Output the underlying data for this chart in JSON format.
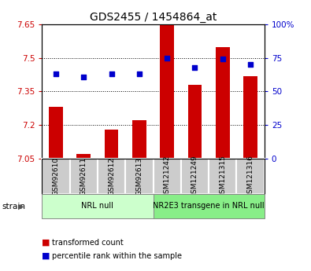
{
  "title": "GDS2455 / 1454864_at",
  "samples": [
    "GSM92610",
    "GSM92611",
    "GSM92612",
    "GSM92613",
    "GSM121242",
    "GSM121249",
    "GSM121315",
    "GSM121316"
  ],
  "transformed_counts": [
    7.28,
    7.07,
    7.18,
    7.22,
    7.65,
    7.38,
    7.55,
    7.42
  ],
  "percentile_ranks": [
    63,
    61,
    63,
    63,
    75,
    68,
    74,
    70
  ],
  "ylim_left": [
    7.05,
    7.65
  ],
  "ylim_right": [
    0,
    100
  ],
  "yticks_left": [
    7.05,
    7.2,
    7.35,
    7.5,
    7.65
  ],
  "yticks_right": [
    0,
    25,
    50,
    75,
    100
  ],
  "ytick_labels_left": [
    "7.05",
    "7.2",
    "7.35",
    "7.5",
    "7.65"
  ],
  "ytick_labels_right": [
    "0",
    "25",
    "50",
    "75",
    "100%"
  ],
  "bar_color": "#cc0000",
  "dot_color": "#0000cc",
  "bar_width": 0.5,
  "sample_box_color": "#cccccc",
  "groups": [
    {
      "label": "NRL null",
      "start": 0,
      "end": 4,
      "color": "#ccffcc"
    },
    {
      "label": "NR2E3 transgene in NRL null",
      "start": 4,
      "end": 8,
      "color": "#88ee88"
    }
  ],
  "strain_label": "strain",
  "legend_items": [
    {
      "color": "#cc0000",
      "label": "transformed count"
    },
    {
      "color": "#0000cc",
      "label": "percentile rank within the sample"
    }
  ],
  "tick_label_color_left": "#cc0000",
  "tick_label_color_right": "#0000cc",
  "background_color": "#ffffff",
  "plot_bg_color": "#ffffff",
  "grid_yticks": [
    7.2,
    7.35,
    7.5
  ]
}
